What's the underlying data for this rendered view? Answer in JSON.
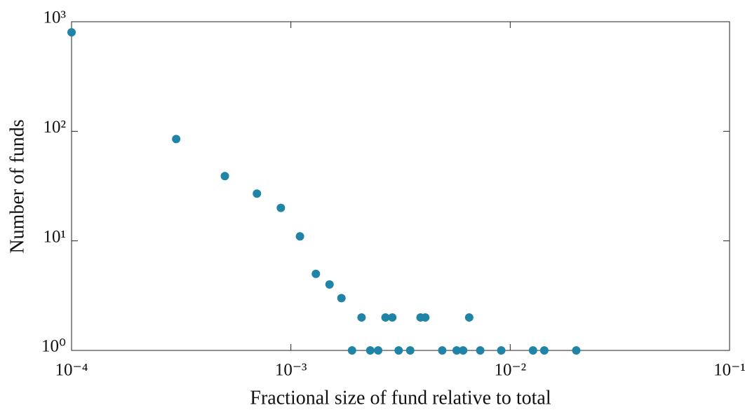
{
  "chart_data": {
    "type": "scatter",
    "xlabel": "Fractional size of fund relative to total",
    "ylabel": "Number of funds",
    "xscale": "log",
    "yscale": "log",
    "xlim": [
      0.0001,
      0.1
    ],
    "ylim": [
      1,
      1000
    ],
    "xticks": [
      {
        "value": 0.0001,
        "label": "10⁻⁴"
      },
      {
        "value": 0.001,
        "label": "10⁻³"
      },
      {
        "value": 0.01,
        "label": "10⁻²"
      },
      {
        "value": 0.1,
        "label": "10⁻¹"
      }
    ],
    "yticks": [
      {
        "value": 1,
        "label": "10⁰"
      },
      {
        "value": 10,
        "label": "10¹"
      },
      {
        "value": 100,
        "label": "10²"
      },
      {
        "value": 1000,
        "label": "10³"
      }
    ],
    "color": "#1f84a6",
    "x": [
      0.0001,
      0.0003,
      0.0005,
      0.0007,
      0.0009,
      0.0011,
      0.0013,
      0.0015,
      0.0017,
      0.0019,
      0.0021,
      0.0023,
      0.0025,
      0.0027,
      0.0029,
      0.0031,
      0.0035,
      0.0039,
      0.0041,
      0.0049,
      0.0057,
      0.0061,
      0.0065,
      0.0073,
      0.0091,
      0.0127,
      0.0143,
      0.02
    ],
    "values": [
      800,
      85,
      39,
      27,
      20,
      11,
      5,
      4,
      3,
      1,
      2,
      1,
      1,
      2,
      2,
      1,
      1,
      2,
      2,
      1,
      1,
      1,
      2,
      1,
      1,
      1,
      1,
      1
    ]
  }
}
